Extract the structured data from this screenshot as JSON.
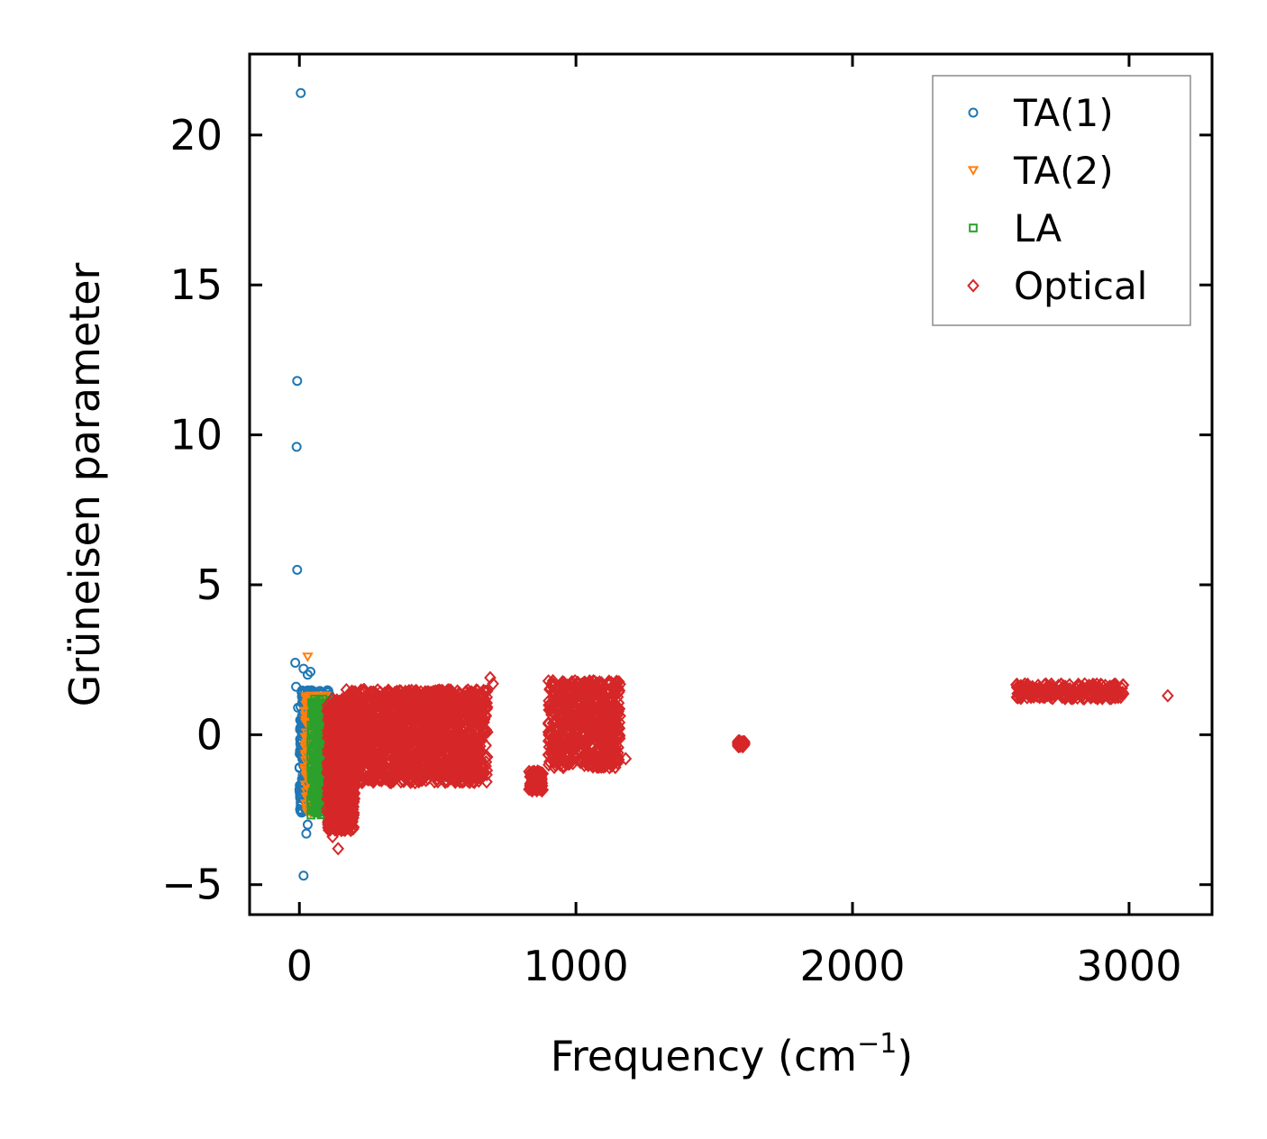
{
  "chart_data": {
    "type": "scatter",
    "title": "",
    "xlabel": "Frequency (cm",
    "xlabel_sup": "−1",
    "xlabel_close": ")",
    "ylabel": "Grüneisen parameter",
    "xlim": [
      -180,
      3300
    ],
    "ylim": [
      -6,
      22.7
    ],
    "xticks": [
      0,
      1000,
      2000,
      3000
    ],
    "xtick_labels": [
      "0",
      "1000",
      "2000",
      "3000"
    ],
    "yticks": [
      -5,
      0,
      5,
      10,
      15,
      20
    ],
    "ytick_labels": [
      "−5",
      "0",
      "5",
      "10",
      "15",
      "20"
    ],
    "grid": false,
    "legend_position": "top-right",
    "series": [
      {
        "name": "TA(1)",
        "marker": "circle",
        "color": "#1f77b4",
        "points": [
          [
            5,
            21.4
          ],
          [
            -8,
            11.8
          ],
          [
            -10,
            9.6
          ],
          [
            -8,
            5.5
          ],
          [
            -15,
            2.4
          ],
          [
            15,
            2.2
          ],
          [
            30,
            2.0
          ],
          [
            40,
            2.1
          ],
          [
            -12,
            1.6
          ],
          [
            20,
            1.4
          ],
          [
            -5,
            0.9
          ],
          [
            25,
            0.6
          ],
          [
            35,
            0.3
          ],
          [
            50,
            0.0
          ],
          [
            10,
            -0.2
          ],
          [
            30,
            -0.5
          ],
          [
            45,
            -0.8
          ],
          [
            20,
            -1.2
          ],
          [
            35,
            -1.6
          ],
          [
            50,
            -1.9
          ],
          [
            25,
            -2.2
          ],
          [
            40,
            -2.5
          ],
          [
            30,
            -3.0
          ],
          [
            25,
            -3.3
          ],
          [
            15,
            -4.7
          ],
          [
            60,
            0.8
          ],
          [
            70,
            0.4
          ],
          [
            80,
            -0.3
          ],
          [
            65,
            -0.9
          ],
          [
            75,
            -1.3
          ],
          [
            55,
            -2.0
          ],
          [
            45,
            0.1
          ],
          [
            55,
            -0.6
          ]
        ]
      },
      {
        "name": "TA(2)",
        "marker": "triangle-down",
        "color": "#ff7f0e",
        "points": [
          [
            30,
            2.6
          ],
          [
            45,
            1.2
          ],
          [
            55,
            0.5
          ],
          [
            70,
            0.0
          ],
          [
            60,
            -0.8
          ],
          [
            80,
            -1.4
          ],
          [
            95,
            -1.8
          ],
          [
            75,
            -2.2
          ],
          [
            50,
            -2.4
          ],
          [
            40,
            -2.6
          ],
          [
            65,
            -0.3
          ],
          [
            85,
            0.3
          ]
        ]
      },
      {
        "name": "LA",
        "marker": "square",
        "color": "#2ca02c",
        "points": [
          [
            60,
            1.1
          ],
          [
            70,
            0.7
          ],
          [
            80,
            0.2
          ],
          [
            90,
            -0.3
          ],
          [
            100,
            -0.9
          ],
          [
            95,
            -1.5
          ],
          [
            100,
            -2.0
          ],
          [
            95,
            -2.4
          ],
          [
            100,
            -2.8
          ],
          [
            85,
            -0.6
          ],
          [
            75,
            0.4
          ]
        ]
      },
      {
        "name": "Optical",
        "marker": "diamond",
        "color": "#d62728",
        "points": [
          [
            120,
            -3.4
          ],
          [
            135,
            -3.2
          ],
          [
            140,
            -3.8
          ],
          [
            155,
            -3.0
          ],
          [
            170,
            1.5
          ],
          [
            180,
            -2.0
          ],
          [
            200,
            -1.2
          ],
          [
            220,
            -0.5
          ],
          [
            250,
            0.0
          ],
          [
            280,
            0.3
          ],
          [
            320,
            0.5
          ],
          [
            360,
            0.6
          ],
          [
            400,
            0.8
          ],
          [
            450,
            1.0
          ],
          [
            500,
            1.3
          ],
          [
            540,
            1.5
          ],
          [
            580,
            0.9
          ],
          [
            620,
            0.7
          ],
          [
            660,
            1.0
          ],
          [
            690,
            1.9
          ],
          [
            700,
            1.7
          ],
          [
            850,
            -1.8
          ],
          [
            860,
            -1.6
          ],
          [
            880,
            -1.3
          ],
          [
            950,
            1.4
          ],
          [
            980,
            1.2
          ],
          [
            1000,
            0.6
          ],
          [
            1010,
            -0.2
          ],
          [
            1000,
            -0.8
          ],
          [
            1040,
            -0.5
          ],
          [
            1060,
            0.4
          ],
          [
            1070,
            1.1
          ],
          [
            1100,
            -0.3
          ],
          [
            1130,
            0.2
          ],
          [
            1180,
            -0.8
          ],
          [
            1600,
            -0.3
          ],
          [
            1590,
            -0.3
          ],
          [
            2600,
            1.6
          ],
          [
            2650,
            1.6
          ],
          [
            2720,
            1.5
          ],
          [
            2780,
            1.4
          ],
          [
            2870,
            1.3
          ],
          [
            2920,
            1.3
          ],
          [
            2970,
            1.25
          ],
          [
            3140,
            1.3
          ]
        ]
      }
    ],
    "dense_regions": [
      {
        "series": "TA(1)",
        "x_range": [
          0,
          110
        ],
        "y_range": [
          -2.6,
          1.5
        ],
        "n": 600,
        "seed": 11
      },
      {
        "series": "TA(2)",
        "x_range": [
          20,
          115
        ],
        "y_range": [
          -2.6,
          1.3
        ],
        "n": 300,
        "seed": 22
      },
      {
        "series": "LA",
        "x_range": [
          40,
          120
        ],
        "y_range": [
          -2.7,
          1.2
        ],
        "n": 300,
        "seed": 33
      },
      {
        "series": "Optical",
        "x_range": [
          100,
          200
        ],
        "y_range": [
          -3.2,
          1.2
        ],
        "n": 900,
        "seed": 44
      },
      {
        "series": "Optical",
        "x_range": [
          170,
          680
        ],
        "y_range": [
          -1.6,
          1.5
        ],
        "n": 1600,
        "seed": 55
      },
      {
        "series": "Optical",
        "x_range": [
          830,
          880
        ],
        "y_range": [
          -1.9,
          -1.2
        ],
        "n": 80,
        "seed": 66
      },
      {
        "series": "Optical",
        "x_range": [
          900,
          1160
        ],
        "y_range": [
          -1.1,
          1.8
        ],
        "n": 700,
        "seed": 77
      },
      {
        "series": "Optical",
        "x_range": [
          1585,
          1610
        ],
        "y_range": [
          -0.4,
          -0.2
        ],
        "n": 40,
        "seed": 88
      },
      {
        "series": "Optical",
        "x_range": [
          2590,
          2980
        ],
        "y_range": [
          1.2,
          1.7
        ],
        "n": 220,
        "seed": 99
      }
    ]
  }
}
